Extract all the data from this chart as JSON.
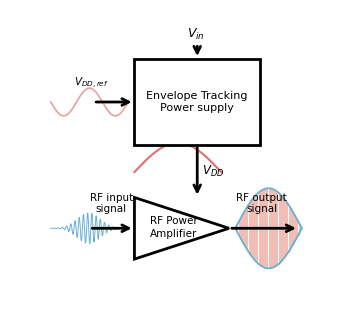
{
  "bg_color": "#ffffff",
  "box_color": "#000000",
  "arrow_color": "#000000",
  "signal_color_blue": "#6ab0d4",
  "signal_color_red_light": "#e8a0a0",
  "signal_color_red_dark": "#e07070",
  "signal_color_orange": "#e89080",
  "box_label1": "Envelope Tracking",
  "box_label2": "Power supply",
  "triangle_label1": "RF Power",
  "triangle_label2": "Amplifier",
  "rf_input_label": "RF input\nsignal",
  "rf_output_label": "RF output\nsignal"
}
